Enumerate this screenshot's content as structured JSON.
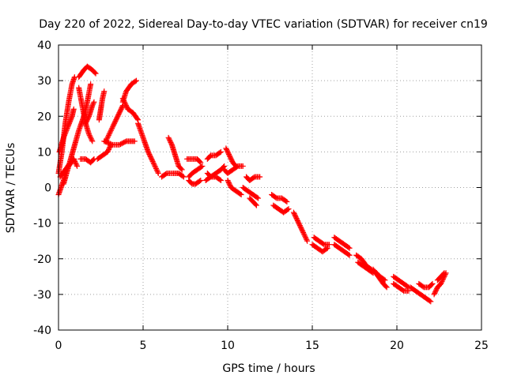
{
  "chart_data": {
    "type": "scatter",
    "title": "Day 220 of 2022, Sidereal Day-to-day VTEC variation (SDTVAR) for receiver cn19",
    "xlabel": "GPS time / hours",
    "ylabel": "SDTVAR / TECUs",
    "xlim": [
      0,
      25
    ],
    "ylim": [
      -40,
      40
    ],
    "x_ticks": [
      0,
      5,
      10,
      15,
      20,
      25
    ],
    "y_ticks": [
      -40,
      -30,
      -20,
      -10,
      0,
      10,
      20,
      30,
      40
    ],
    "grid": true,
    "marker": "+",
    "color": "#ff0000",
    "series": [
      {
        "name": "SDTVAR",
        "tracks": [
          [
            [
              0.0,
              -2
            ],
            [
              0.3,
              2
            ],
            [
              0.6,
              6
            ],
            [
              0.9,
              8
            ],
            [
              1.1,
              6
            ]
          ],
          [
            [
              0.0,
              4
            ],
            [
              0.2,
              10
            ],
            [
              0.4,
              18
            ],
            [
              0.6,
              24
            ],
            [
              0.8,
              29
            ],
            [
              0.95,
              31
            ]
          ],
          [
            [
              0.05,
              10
            ],
            [
              0.3,
              14
            ],
            [
              0.55,
              17
            ],
            [
              0.8,
              20
            ],
            [
              0.9,
              22
            ]
          ],
          [
            [
              0.1,
              3
            ],
            [
              0.4,
              5
            ],
            [
              0.7,
              7
            ],
            [
              0.9,
              8
            ]
          ],
          [
            [
              0.3,
              1
            ],
            [
              0.6,
              6
            ],
            [
              0.9,
              11
            ],
            [
              1.2,
              16
            ],
            [
              1.5,
              20
            ],
            [
              1.7,
              24
            ],
            [
              1.9,
              29
            ]
          ],
          [
            [
              1.2,
              31
            ],
            [
              1.5,
              33
            ],
            [
              1.7,
              34
            ],
            [
              2.0,
              33
            ],
            [
              2.2,
              32
            ]
          ],
          [
            [
              1.2,
              28
            ],
            [
              1.4,
              23
            ],
            [
              1.6,
              18
            ],
            [
              1.8,
              15
            ],
            [
              2.0,
              13
            ]
          ],
          [
            [
              1.6,
              18
            ],
            [
              1.8,
              20
            ],
            [
              2.0,
              23
            ],
            [
              2.1,
              24
            ]
          ],
          [
            [
              1.3,
              8
            ],
            [
              1.6,
              8
            ],
            [
              1.9,
              7
            ],
            [
              2.1,
              8
            ]
          ],
          [
            [
              2.3,
              8
            ],
            [
              2.6,
              9
            ],
            [
              2.9,
              10
            ],
            [
              3.1,
              12
            ]
          ],
          [
            [
              2.4,
              19
            ],
            [
              2.5,
              22
            ],
            [
              2.6,
              25
            ],
            [
              2.7,
              27
            ]
          ],
          [
            [
              2.8,
              13
            ],
            [
              3.1,
              16
            ],
            [
              3.4,
              19
            ],
            [
              3.6,
              21
            ],
            [
              3.8,
              23
            ]
          ],
          [
            [
              2.7,
              13
            ],
            [
              3.2,
              12
            ],
            [
              3.6,
              12
            ],
            [
              4.0,
              13
            ],
            [
              4.5,
              13
            ]
          ],
          [
            [
              3.8,
              24
            ],
            [
              4.0,
              27
            ],
            [
              4.3,
              29
            ],
            [
              4.6,
              30
            ]
          ],
          [
            [
              3.8,
              25
            ],
            [
              4.1,
              22
            ],
            [
              4.4,
              21
            ],
            [
              4.7,
              19
            ]
          ],
          [
            [
              4.7,
              18
            ],
            [
              5.0,
              14
            ],
            [
              5.3,
              10
            ],
            [
              5.6,
              7
            ],
            [
              5.9,
              4
            ]
          ],
          [
            [
              6.1,
              3
            ],
            [
              6.4,
              4
            ],
            [
              6.8,
              4
            ],
            [
              7.1,
              4
            ],
            [
              7.4,
              3
            ]
          ],
          [
            [
              6.5,
              14
            ],
            [
              6.7,
              12
            ],
            [
              6.9,
              9
            ],
            [
              7.1,
              6
            ],
            [
              7.3,
              5
            ]
          ],
          [
            [
              7.6,
              8
            ],
            [
              7.9,
              8
            ],
            [
              8.2,
              8
            ],
            [
              8.4,
              7
            ]
          ],
          [
            [
              7.7,
              3
            ],
            [
              7.9,
              4
            ],
            [
              8.2,
              5
            ],
            [
              8.5,
              6
            ]
          ],
          [
            [
              7.7,
              2
            ],
            [
              7.9,
              1
            ],
            [
              8.1,
              1
            ],
            [
              8.4,
              2
            ]
          ],
          [
            [
              8.8,
              8
            ],
            [
              9.0,
              9
            ],
            [
              9.3,
              9
            ],
            [
              9.6,
              10
            ]
          ],
          [
            [
              8.8,
              4
            ],
            [
              9.0,
              3
            ],
            [
              9.3,
              3
            ],
            [
              9.6,
              2
            ]
          ],
          [
            [
              8.7,
              2
            ],
            [
              9.0,
              3
            ],
            [
              9.3,
              4
            ],
            [
              9.6,
              5
            ],
            [
              9.8,
              6
            ]
          ],
          [
            [
              9.9,
              11
            ],
            [
              10.1,
              9
            ],
            [
              10.3,
              7
            ],
            [
              10.5,
              6
            ]
          ],
          [
            [
              9.8,
              5
            ],
            [
              10.0,
              4
            ],
            [
              10.3,
              5
            ],
            [
              10.6,
              6
            ],
            [
              10.9,
              6
            ]
          ],
          [
            [
              10.0,
              2
            ],
            [
              10.2,
              0
            ],
            [
              10.5,
              -1
            ],
            [
              10.8,
              -2
            ]
          ],
          [
            [
              11.1,
              3
            ],
            [
              11.3,
              2
            ],
            [
              11.6,
              3
            ],
            [
              11.9,
              3
            ]
          ],
          [
            [
              10.9,
              0
            ],
            [
              11.2,
              -1
            ],
            [
              11.5,
              -2
            ],
            [
              11.8,
              -3
            ]
          ],
          [
            [
              11.3,
              -3
            ],
            [
              11.5,
              -4
            ],
            [
              11.7,
              -5
            ]
          ],
          [
            [
              12.6,
              -2
            ],
            [
              12.9,
              -3
            ],
            [
              13.2,
              -3
            ],
            [
              13.5,
              -4
            ]
          ],
          [
            [
              12.7,
              -5
            ],
            [
              13.0,
              -6
            ],
            [
              13.3,
              -7
            ],
            [
              13.6,
              -6
            ]
          ],
          [
            [
              13.9,
              -7
            ],
            [
              14.1,
              -9
            ],
            [
              14.3,
              -11
            ],
            [
              14.5,
              -13
            ],
            [
              14.7,
              -15
            ]
          ],
          [
            [
              15.1,
              -14
            ],
            [
              15.4,
              -15
            ],
            [
              15.7,
              -16
            ],
            [
              16.0,
              -16
            ]
          ],
          [
            [
              15.0,
              -16
            ],
            [
              15.3,
              -17
            ],
            [
              15.6,
              -18
            ],
            [
              15.9,
              -17
            ]
          ],
          [
            [
              16.3,
              -14
            ],
            [
              16.6,
              -15
            ],
            [
              16.9,
              -16
            ],
            [
              17.2,
              -17
            ]
          ],
          [
            [
              16.3,
              -16
            ],
            [
              16.6,
              -17
            ],
            [
              16.9,
              -18
            ],
            [
              17.2,
              -19
            ]
          ],
          [
            [
              17.6,
              -19
            ],
            [
              17.9,
              -20
            ],
            [
              18.2,
              -22
            ],
            [
              18.5,
              -23
            ]
          ],
          [
            [
              17.7,
              -21
            ],
            [
              18.0,
              -22
            ],
            [
              18.3,
              -23
            ],
            [
              18.6,
              -24
            ]
          ],
          [
            [
              18.6,
              -23
            ],
            [
              18.9,
              -25
            ],
            [
              19.2,
              -27
            ],
            [
              19.4,
              -28
            ]
          ],
          [
            [
              18.8,
              -24
            ],
            [
              19.0,
              -25
            ],
            [
              19.3,
              -26
            ]
          ],
          [
            [
              19.8,
              -25
            ],
            [
              20.1,
              -26
            ],
            [
              20.4,
              -27
            ],
            [
              20.7,
              -28
            ]
          ],
          [
            [
              19.8,
              -27
            ],
            [
              20.1,
              -28
            ],
            [
              20.4,
              -29
            ],
            [
              20.7,
              -29
            ]
          ],
          [
            [
              20.8,
              -28
            ],
            [
              21.1,
              -29
            ],
            [
              21.4,
              -30
            ],
            [
              21.7,
              -31
            ],
            [
              22.0,
              -32
            ]
          ],
          [
            [
              21.3,
              -27
            ],
            [
              21.6,
              -28
            ],
            [
              21.9,
              -28
            ],
            [
              22.1,
              -27
            ]
          ],
          [
            [
              22.2,
              -30
            ],
            [
              22.4,
              -28
            ],
            [
              22.6,
              -27
            ],
            [
              22.8,
              -25
            ],
            [
              22.9,
              -24
            ]
          ],
          [
            [
              22.4,
              -26
            ],
            [
              22.6,
              -25
            ],
            [
              22.8,
              -24
            ]
          ]
        ]
      }
    ]
  }
}
